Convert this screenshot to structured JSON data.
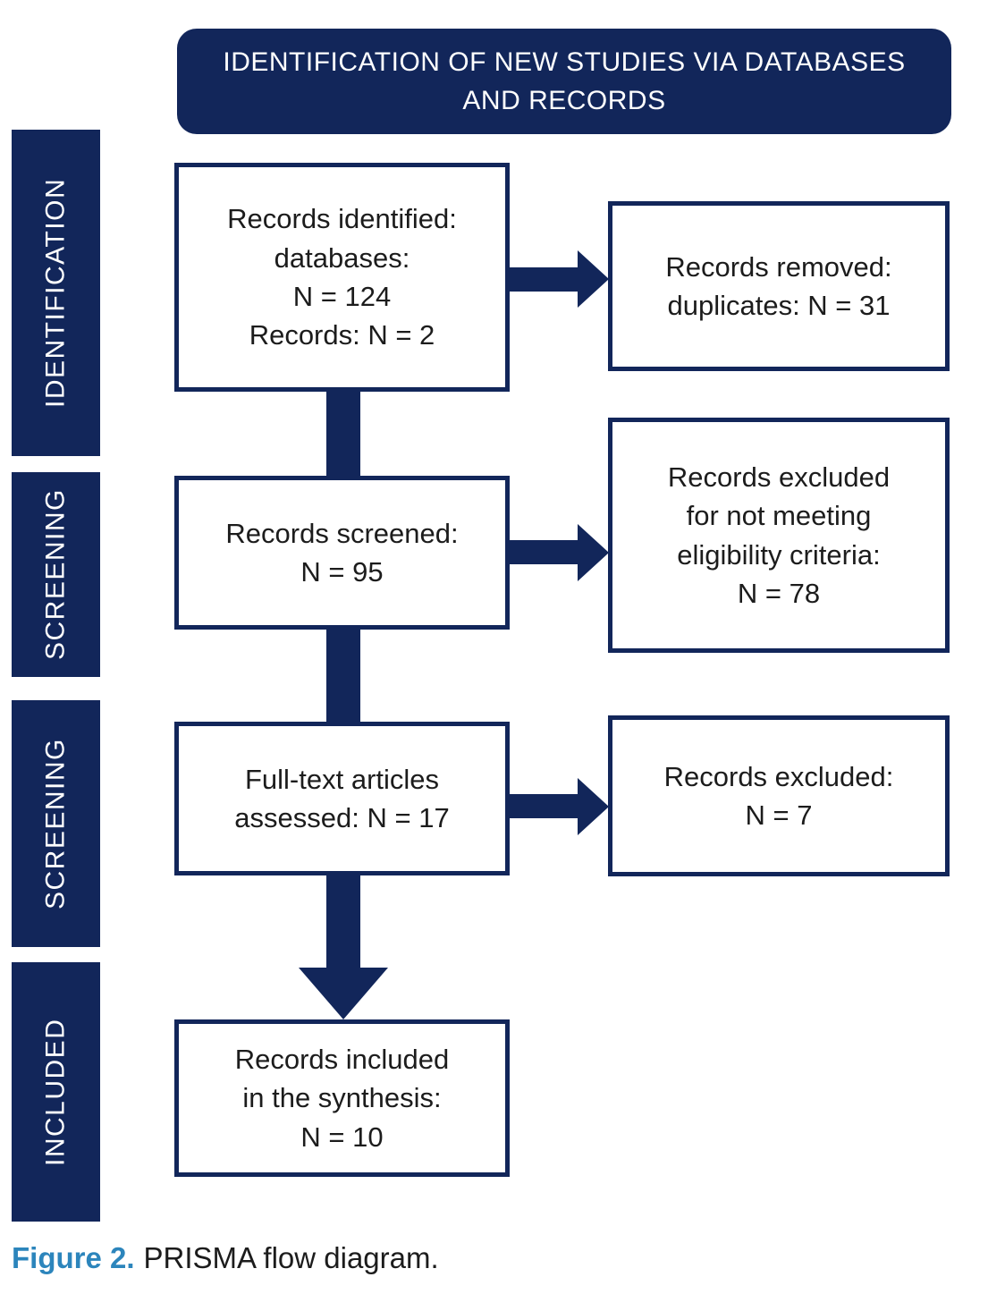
{
  "header": {
    "title": "IDENTIFICATION OF NEW STUDIES VIA DATABASES\nAND RECORDS"
  },
  "sidebar": {
    "labels": [
      {
        "id": "identification",
        "label": "IDENTIFICATION"
      },
      {
        "id": "screening-1",
        "label": "SCREENING"
      },
      {
        "id": "screening-2",
        "label": "SCREENING"
      },
      {
        "id": "included",
        "label": "INCLUDED"
      }
    ]
  },
  "boxes": {
    "main": [
      {
        "id": "records-identified",
        "text": "Records identified:\ndatabases:\nN = 124\nRecords: N = 2",
        "n_databases": 124,
        "n_records": 2
      },
      {
        "id": "records-screened",
        "text": "Records screened:\nN = 95",
        "n": 95
      },
      {
        "id": "fulltext-assessed",
        "text": "Full-text articles\nassessed: N = 17",
        "n": 17
      },
      {
        "id": "records-included",
        "text": "Records included\nin the synthesis:\nN = 10",
        "n": 10
      }
    ],
    "side": [
      {
        "id": "records-removed-duplicates",
        "text": "Records removed:\nduplicates: N = 31",
        "n": 31
      },
      {
        "id": "records-excluded-eligibility",
        "text": "Records excluded\nfor not meeting\neligibility criteria:\nN = 78",
        "n": 78
      },
      {
        "id": "records-excluded",
        "text": "Records excluded:\nN = 7",
        "n": 7
      }
    ]
  },
  "caption": {
    "label": "Figure 2.",
    "text": "PRISMA flow diagram."
  },
  "colors": {
    "navy": "#12265A",
    "caption_accent": "#2C85BC",
    "box_text": "#1C1C1C",
    "box_background": "#FFFFFF"
  }
}
